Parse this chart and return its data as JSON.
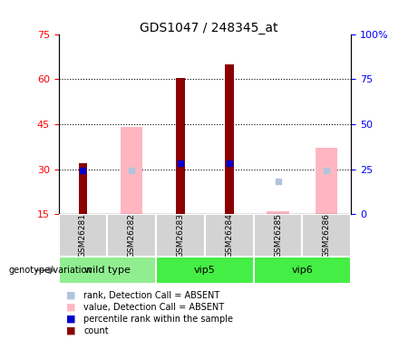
{
  "title": "GDS1047 / 248345_at",
  "samples": [
    "GSM26281",
    "GSM26282",
    "GSM26283",
    "GSM26284",
    "GSM26285",
    "GSM26286"
  ],
  "count_values": [
    32,
    null,
    60.5,
    65,
    null,
    null
  ],
  "percentile_values": [
    29.5,
    null,
    32,
    32,
    null,
    null
  ],
  "absent_value_values": [
    null,
    44,
    null,
    null,
    16,
    37
  ],
  "absent_rank_values": [
    null,
    29.5,
    null,
    null,
    26,
    29.5
  ],
  "ylim_left": [
    15,
    75
  ],
  "ylim_right": [
    0,
    100
  ],
  "yticks_left": [
    15,
    30,
    45,
    60,
    75
  ],
  "yticks_right": [
    0,
    25,
    50,
    75,
    100
  ],
  "count_color": "#8B0000",
  "percentile_color": "#0000CC",
  "absent_value_color": "#FFB6C1",
  "absent_rank_color": "#B0C4DE",
  "plot_bg": "white",
  "group_info": [
    {
      "name": "wild type",
      "start": 0,
      "end": 1,
      "color": "#90EE90"
    },
    {
      "name": "vip5",
      "start": 2,
      "end": 3,
      "color": "#44EE44"
    },
    {
      "name": "vip6",
      "start": 4,
      "end": 5,
      "color": "#44EE44"
    }
  ],
  "legend_items": [
    {
      "label": "count",
      "color": "#8B0000"
    },
    {
      "label": "percentile rank within the sample",
      "color": "#0000CC"
    },
    {
      "label": "value, Detection Call = ABSENT",
      "color": "#FFB6C1"
    },
    {
      "label": "rank, Detection Call = ABSENT",
      "color": "#B0C4DE"
    }
  ]
}
